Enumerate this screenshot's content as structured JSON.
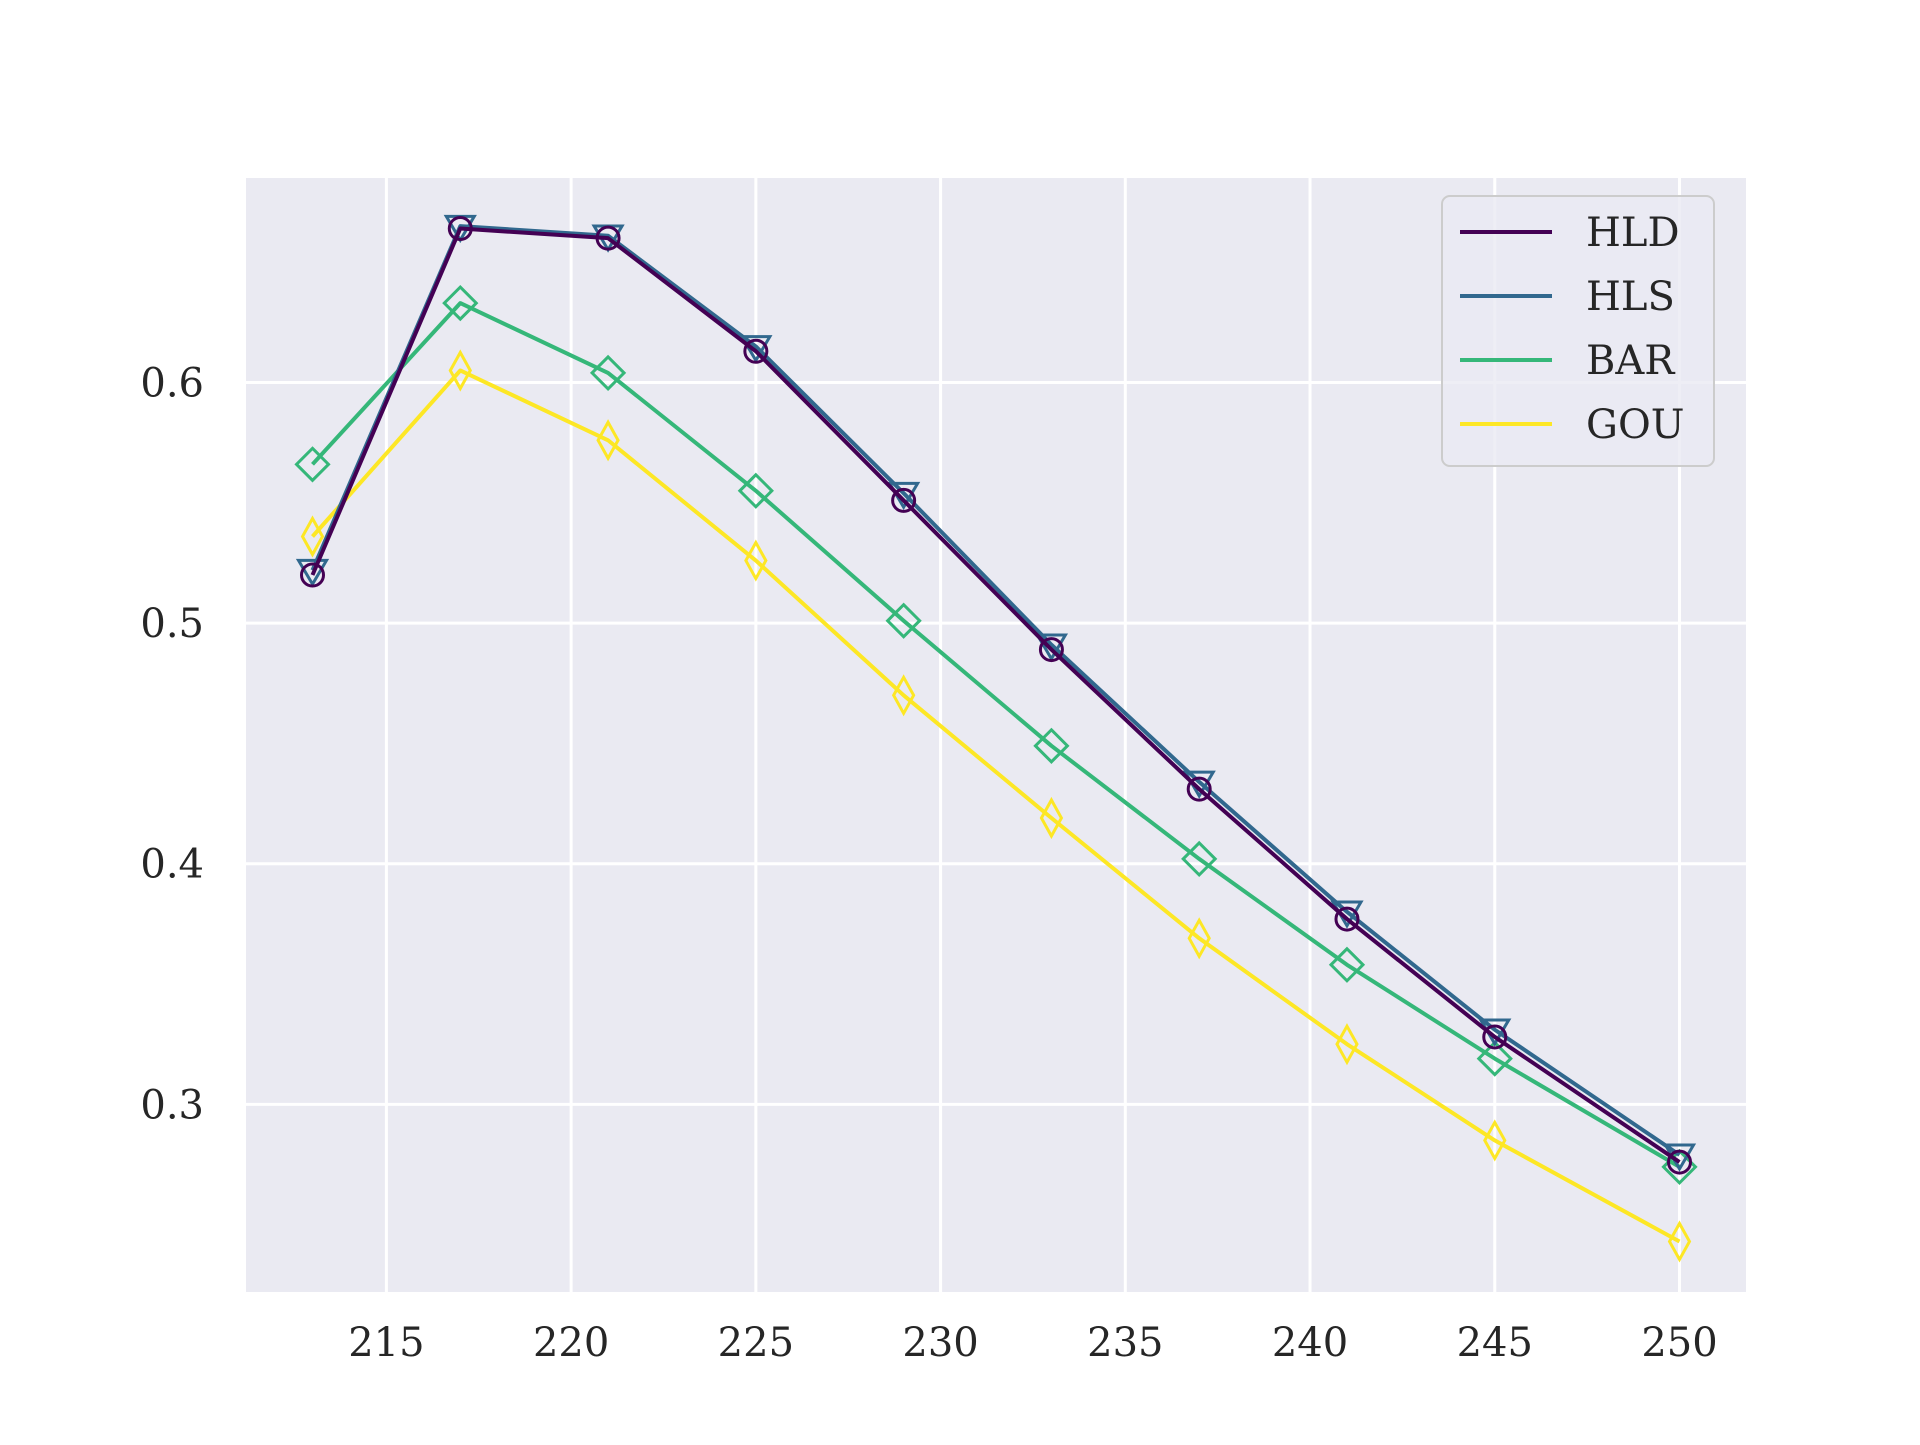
{
  "chart_data": {
    "type": "line",
    "title": "",
    "xlabel": "",
    "ylabel": "",
    "xlim": [
      211.2,
      251.8
    ],
    "ylim": [
      0.222,
      0.685
    ],
    "xticks": [
      215,
      220,
      225,
      230,
      235,
      240,
      245,
      250
    ],
    "yticks": [
      0.3,
      0.4,
      0.5,
      0.6
    ],
    "xtick_labels": [
      "215",
      "220",
      "225",
      "230",
      "235",
      "240",
      "245",
      "250"
    ],
    "ytick_labels": [
      "0.3",
      "0.4",
      "0.5",
      "0.6"
    ],
    "grid": true,
    "background": "#eaeaf2",
    "legend_position": "top-right",
    "x": [
      213,
      217,
      221,
      225,
      229,
      233,
      237,
      241,
      245,
      250
    ],
    "series": [
      {
        "name": "HLD",
        "color": "#440154",
        "marker": "circle",
        "values": [
          0.52,
          0.664,
          0.66,
          0.613,
          0.551,
          0.489,
          0.431,
          0.377,
          0.328,
          0.276
        ]
      },
      {
        "name": "HLS",
        "color": "#31688e",
        "marker": "triangle-down",
        "values": [
          0.522,
          0.665,
          0.661,
          0.615,
          0.554,
          0.491,
          0.434,
          0.38,
          0.331,
          0.279
        ]
      },
      {
        "name": "BAR",
        "color": "#35b779",
        "marker": "diamond",
        "values": [
          0.566,
          0.633,
          0.604,
          0.555,
          0.501,
          0.449,
          0.402,
          0.358,
          0.319,
          0.274
        ]
      },
      {
        "name": "GOU",
        "color": "#fde725",
        "marker": "thin-diamond",
        "values": [
          0.536,
          0.605,
          0.576,
          0.526,
          0.47,
          0.419,
          0.369,
          0.325,
          0.285,
          0.243
        ]
      }
    ]
  }
}
